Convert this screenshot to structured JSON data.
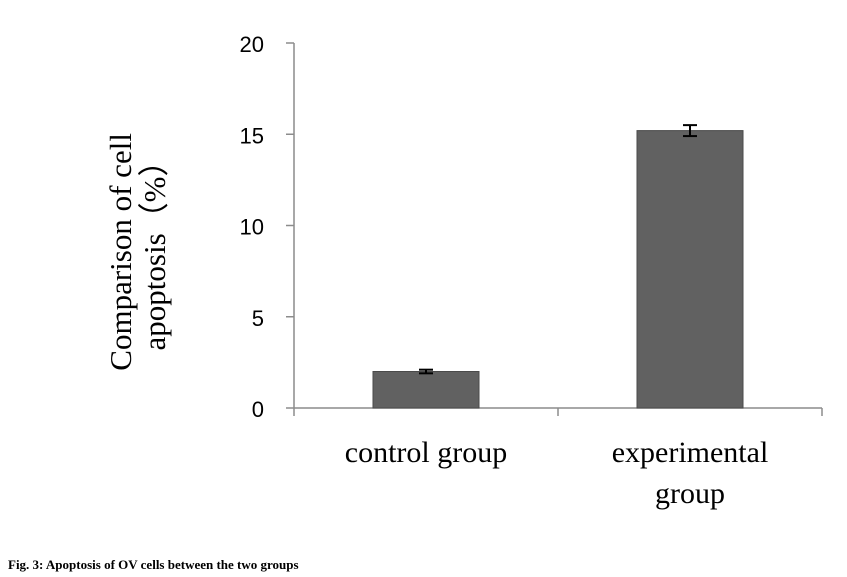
{
  "chart_data": {
    "type": "bar",
    "categories": [
      [
        "control group"
      ],
      [
        "experimental",
        "group"
      ]
    ],
    "values": [
      2.0,
      15.2
    ],
    "errors": [
      0.1,
      0.3
    ],
    "ylabel_lines": [
      "Comparison of cell",
      "apoptosis（%）"
    ],
    "ylim": [
      0,
      20
    ],
    "yticks": [
      0,
      5,
      10,
      15,
      20
    ],
    "bar_color": "#616161",
    "bar_edge_color": "#4a4a4a"
  },
  "caption": "Fig. 3: Apoptosis of OV cells between the two groups"
}
